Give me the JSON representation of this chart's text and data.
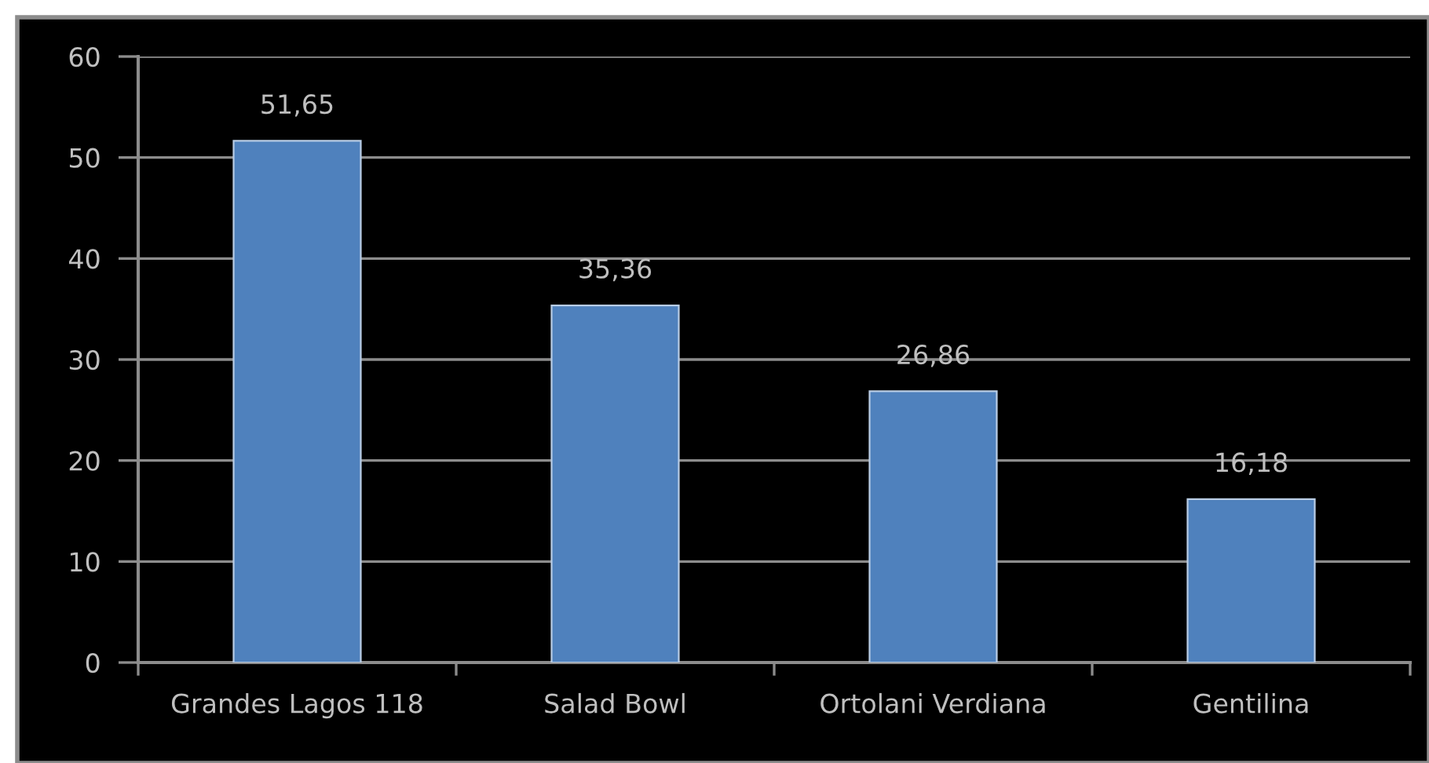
{
  "chart_data": {
    "type": "bar",
    "categories": [
      "Grandes Lagos 118",
      "Salad Bowl",
      "Ortolani Verdiana",
      "Gentilina"
    ],
    "values": [
      51.65,
      35.36,
      26.86,
      16.18
    ],
    "value_labels": [
      "51,65",
      "35,36",
      "26,86",
      "16,18"
    ],
    "color": "#4f81bd",
    "ylim": [
      0,
      60
    ],
    "yticks": [
      0,
      10,
      20,
      30,
      40,
      50,
      60
    ],
    "grid": "y"
  }
}
